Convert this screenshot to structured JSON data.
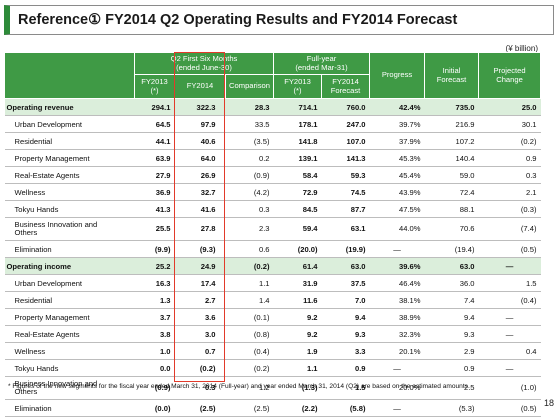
{
  "title": "Reference① FY2014 Q2 Operating Results and FY2014 Forecast",
  "unit": "(¥ billion)",
  "headers": {
    "q2_group": "Q2 First Six Months",
    "q2_group_sub": "(ended June-30)",
    "fy_group": "Full-year",
    "fy_group_sub": "(ended Mar-31)",
    "fy2013_q2": "FY2013",
    "fy2013_q2_mark": "(*)",
    "fy2014_q2": "FY2014",
    "comparison": "Comparison",
    "fy2013_fy": "FY2013",
    "fy2013_fy_mark": "(*)",
    "fy2014_fy": "FY2014",
    "fy2014_fy_sub": "Forecast",
    "progress": "Progress",
    "initial": "Initial",
    "initial_sub": "Forecast",
    "projected": "Projected",
    "projected_sub": "Change"
  },
  "rows": [
    {
      "label": "Operating revenue",
      "v": [
        "294.1",
        "322.3",
        "28.3",
        "714.1",
        "760.0",
        "42.4%",
        "735.0",
        "25.0"
      ],
      "group": true
    },
    {
      "label": "Urban Development",
      "v": [
        "64.5",
        "97.9",
        "33.5",
        "178.1",
        "247.0",
        "39.7%",
        "216.9",
        "30.1"
      ]
    },
    {
      "label": "Residential",
      "v": [
        "44.1",
        "40.6",
        "(3.5)",
        "141.8",
        "107.0",
        "37.9%",
        "107.2",
        "(0.2)"
      ]
    },
    {
      "label": "Property Management",
      "v": [
        "63.9",
        "64.0",
        "0.2",
        "139.1",
        "141.3",
        "45.3%",
        "140.4",
        "0.9"
      ]
    },
    {
      "label": "Real-Estate Agents",
      "v": [
        "27.9",
        "26.9",
        "(0.9)",
        "58.4",
        "59.3",
        "45.4%",
        "59.0",
        "0.3"
      ]
    },
    {
      "label": "Wellness",
      "v": [
        "36.9",
        "32.7",
        "(4.2)",
        "72.9",
        "74.5",
        "43.9%",
        "72.4",
        "2.1"
      ]
    },
    {
      "label": "Tokyu Hands",
      "v": [
        "41.3",
        "41.6",
        "0.3",
        "84.5",
        "87.7",
        "47.5%",
        "88.1",
        "(0.3)"
      ]
    },
    {
      "label": "Business Innovation and",
      "label2": "Others",
      "v": [
        "25.5",
        "27.8",
        "2.3",
        "59.4",
        "63.1",
        "44.0%",
        "70.6",
        "(7.4)"
      ],
      "tall": true
    },
    {
      "label": "Elimination",
      "v": [
        "(9.9)",
        "(9.3)",
        "0.6",
        "(20.0)",
        "(19.9)",
        "—",
        "(19.4)",
        "(0.5)"
      ]
    },
    {
      "label": "Operating income",
      "v": [
        "25.2",
        "24.9",
        "(0.2)",
        "61.4",
        "63.0",
        "39.6%",
        "63.0",
        "—"
      ],
      "group": true
    },
    {
      "label": "Urban Development",
      "v": [
        "16.3",
        "17.4",
        "1.1",
        "31.9",
        "37.5",
        "46.4%",
        "36.0",
        "1.5"
      ]
    },
    {
      "label": "Residential",
      "v": [
        "1.3",
        "2.7",
        "1.4",
        "11.6",
        "7.0",
        "38.1%",
        "7.4",
        "(0.4)"
      ]
    },
    {
      "label": "Property Management",
      "v": [
        "3.7",
        "3.6",
        "(0.1)",
        "9.2",
        "9.4",
        "38.9%",
        "9.4",
        "—"
      ]
    },
    {
      "label": "Real-Estate Agents",
      "v": [
        "3.8",
        "3.0",
        "(0.8)",
        "9.2",
        "9.3",
        "32.3%",
        "9.3",
        "—"
      ]
    },
    {
      "label": "Wellness",
      "v": [
        "1.0",
        "0.7",
        "(0.4)",
        "1.9",
        "3.3",
        "20.1%",
        "2.9",
        "0.4"
      ]
    },
    {
      "label": "Tokyu Hands",
      "v": [
        "0.0",
        "(0.2)",
        "(0.2)",
        "1.1",
        "0.9",
        "—",
        "0.9",
        "—"
      ]
    },
    {
      "label": "Business Innovation and",
      "label2": "Others",
      "v": [
        "(0.9)",
        "0.3",
        "1.2",
        "(1.3)",
        "1.5",
        "20.0%",
        "2.5",
        "(1.0)"
      ],
      "tall": true
    },
    {
      "label": "Elimination",
      "v": [
        "(0.0)",
        "(2.5)",
        "(2.5)",
        "(2.2)",
        "(5.8)",
        "—",
        "(5.3)",
        "(0.5)"
      ]
    }
  ],
  "footnote": "* Figures of the new segments for the fiscal year ended March 31, 2014 (Full-year) and year ended March 31, 2014 (Q2) are based on the estimated amounts.",
  "page_number": "18",
  "colors": {
    "header_bg": "#3f9a45",
    "highlight": "#e23a2a",
    "group_row_bg": "#dbeedb"
  }
}
